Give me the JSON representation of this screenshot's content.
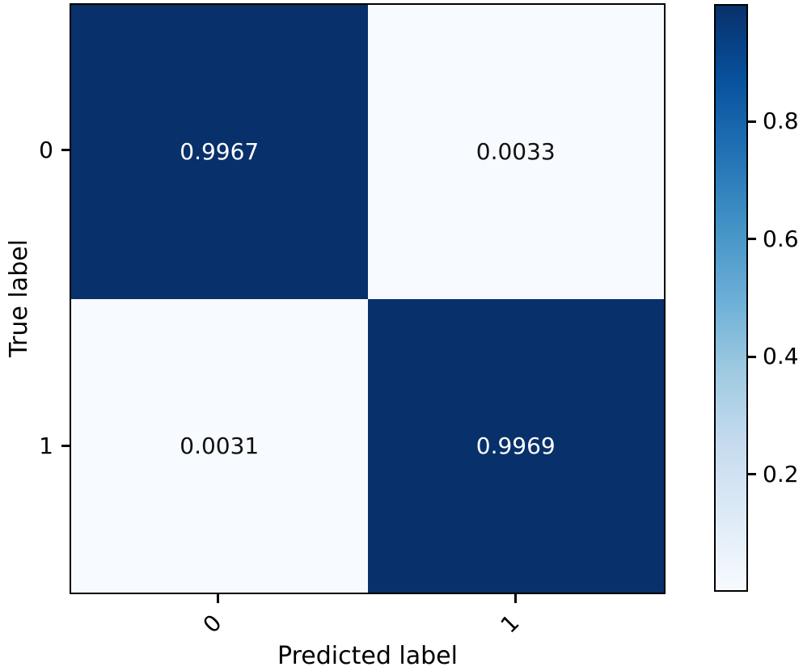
{
  "chart_data": {
    "type": "heatmap",
    "title": "",
    "xlabel": "Predicted label",
    "ylabel": "True label",
    "x_tick_labels": [
      "0",
      "1"
    ],
    "y_tick_labels": [
      "0",
      "1"
    ],
    "matrix": [
      [
        0.9967,
        0.0033
      ],
      [
        0.0031,
        0.9969
      ]
    ],
    "cell_labels": [
      [
        "0.9967",
        "0.0033"
      ],
      [
        "0.0031",
        "0.9969"
      ]
    ],
    "colormap": "Blues",
    "vmin": 0.0031,
    "vmax": 0.9969,
    "grid": false,
    "colorbar": {
      "position": "right",
      "tick_values": [
        0.8,
        0.6,
        0.4,
        0.2
      ],
      "tick_labels": [
        "0.8",
        "0.6",
        "0.4",
        "0.2"
      ],
      "gradient_stops": [
        "#f7fbff",
        "#deebf7",
        "#c6dbef",
        "#9ecae1",
        "#6baed6",
        "#4292c6",
        "#2171b5",
        "#08519c",
        "#08306b"
      ]
    },
    "colors": {
      "cell_high": "#08306b",
      "cell_low": "#f7fbff",
      "text_on_high": "#ffffff",
      "text_on_low": "#111111",
      "spine": "#000000"
    }
  }
}
